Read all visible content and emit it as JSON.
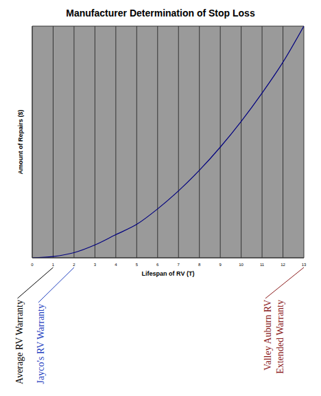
{
  "chart_data": {
    "type": "line",
    "title": "Manufacturer Determination of Stop Loss",
    "x_label": "Lifespan of RV (T)",
    "y_label": "Amount of Repairs ($)",
    "x": [
      0,
      1,
      2,
      3,
      4,
      5,
      6,
      7,
      8,
      9,
      10,
      11,
      12,
      13
    ],
    "values": [
      0,
      0.05,
      0.2,
      0.5,
      0.9,
      1.3,
      1.9,
      2.6,
      3.4,
      4.3,
      5.3,
      6.4,
      7.6,
      9.0
    ],
    "color": "#00007f",
    "xlim": [
      0,
      13
    ],
    "xticks": [
      0,
      1,
      2,
      3,
      4,
      5,
      6,
      7,
      8,
      9,
      10,
      11,
      12,
      13
    ],
    "ylim": [
      0,
      9
    ],
    "yticks": [
      0,
      1,
      2,
      3,
      4,
      5,
      6,
      7,
      8,
      9
    ],
    "grid": true,
    "tick_labels": "x",
    "annotations": [
      {
        "text": "Average RV Warranty",
        "x": 1,
        "color": "#000000"
      },
      {
        "text": "Jayco's RV Warranty",
        "x": 2,
        "color": "#1f3fbf"
      },
      {
        "text": "Valley Auburn RV\nExtended Warranty",
        "x": 13,
        "color": "#8b1a1a"
      }
    ]
  }
}
